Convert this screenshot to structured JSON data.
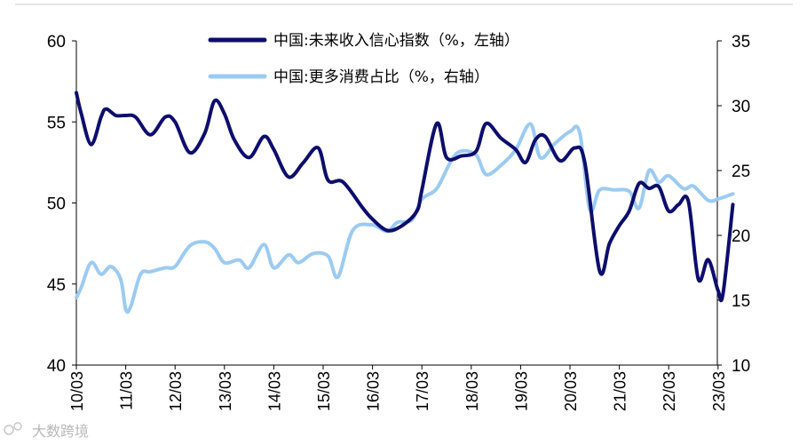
{
  "chart_data": {
    "type": "line",
    "title": "",
    "x_tick_labels": [
      "10/03",
      "11/03",
      "12/03",
      "13/03",
      "14/03",
      "15/03",
      "16/03",
      "17/03",
      "18/03",
      "19/03",
      "20/03",
      "21/03",
      "22/03",
      "23/03"
    ],
    "left_axis": {
      "ylim": [
        40,
        60
      ],
      "ticks": [
        "40",
        "45",
        "50",
        "55",
        "60"
      ]
    },
    "right_axis": {
      "ylim": [
        10,
        35
      ],
      "ticks": [
        "10",
        "15",
        "20",
        "25",
        "30",
        "35"
      ]
    },
    "series": [
      {
        "name": "中国:未来收入信心指数（%，左轴）",
        "axis": "left",
        "color": "#0d0d6e",
        "points": [
          [
            0,
            56.8
          ],
          [
            0.1,
            55.5
          ],
          [
            0.3,
            53.6
          ],
          [
            0.5,
            55.3
          ],
          [
            0.6,
            55.8
          ],
          [
            0.8,
            55.4
          ],
          [
            1.0,
            55.4
          ],
          [
            1.2,
            55.3
          ],
          [
            1.5,
            54.2
          ],
          [
            1.8,
            55.3
          ],
          [
            2.0,
            55.0
          ],
          [
            2.3,
            53.1
          ],
          [
            2.6,
            54.3
          ],
          [
            2.8,
            56.3
          ],
          [
            3.0,
            55.5
          ],
          [
            3.2,
            53.9
          ],
          [
            3.5,
            52.8
          ],
          [
            3.8,
            54.1
          ],
          [
            4.0,
            53.3
          ],
          [
            4.3,
            51.6
          ],
          [
            4.6,
            52.5
          ],
          [
            4.9,
            53.4
          ],
          [
            5.1,
            51.4
          ],
          [
            5.4,
            51.3
          ],
          [
            5.8,
            49.7
          ],
          [
            6.0,
            49.0
          ],
          [
            6.3,
            48.3
          ],
          [
            6.6,
            48.6
          ],
          [
            6.9,
            49.5
          ],
          [
            7.0,
            50.8
          ],
          [
            7.3,
            54.9
          ],
          [
            7.5,
            52.8
          ],
          [
            7.8,
            52.9
          ],
          [
            8.1,
            53.2
          ],
          [
            8.3,
            54.9
          ],
          [
            8.6,
            54.0
          ],
          [
            8.9,
            53.3
          ],
          [
            9.1,
            52.5
          ],
          [
            9.3,
            53.9
          ],
          [
            9.5,
            54.1
          ],
          [
            9.8,
            52.6
          ],
          [
            10.1,
            53.4
          ],
          [
            10.3,
            52.5
          ],
          [
            10.6,
            45.8
          ],
          [
            10.8,
            47.5
          ],
          [
            11.0,
            48.6
          ],
          [
            11.2,
            49.5
          ],
          [
            11.4,
            51.2
          ],
          [
            11.6,
            50.9
          ],
          [
            11.8,
            51.0
          ],
          [
            12.0,
            49.5
          ],
          [
            12.2,
            49.9
          ],
          [
            12.4,
            50.1
          ],
          [
            12.6,
            45.3
          ],
          [
            12.8,
            46.5
          ],
          [
            13.0,
            44.6
          ],
          [
            13.1,
            44.4
          ],
          [
            13.3,
            49.9
          ]
        ]
      },
      {
        "name": "中国:更多消费占比（%，右轴）",
        "axis": "right",
        "color": "#9bcbf2",
        "points": [
          [
            0,
            15.2
          ],
          [
            0.1,
            16.0
          ],
          [
            0.3,
            17.9
          ],
          [
            0.5,
            17.0
          ],
          [
            0.7,
            17.6
          ],
          [
            0.9,
            16.6
          ],
          [
            1.0,
            14.3
          ],
          [
            1.1,
            14.5
          ],
          [
            1.3,
            17.0
          ],
          [
            1.5,
            17.2
          ],
          [
            1.8,
            17.5
          ],
          [
            2.0,
            17.6
          ],
          [
            2.3,
            19.2
          ],
          [
            2.6,
            19.5
          ],
          [
            2.8,
            19.0
          ],
          [
            3.0,
            17.9
          ],
          [
            3.3,
            18.1
          ],
          [
            3.5,
            17.5
          ],
          [
            3.8,
            19.3
          ],
          [
            4.0,
            17.5
          ],
          [
            4.3,
            18.5
          ],
          [
            4.5,
            17.9
          ],
          [
            4.8,
            18.6
          ],
          [
            5.1,
            18.4
          ],
          [
            5.3,
            16.8
          ],
          [
            5.6,
            20.4
          ],
          [
            6.0,
            20.8
          ],
          [
            6.3,
            20.3
          ],
          [
            6.5,
            21.0
          ],
          [
            6.8,
            21.2
          ],
          [
            7.0,
            22.8
          ],
          [
            7.3,
            23.6
          ],
          [
            7.6,
            25.8
          ],
          [
            7.8,
            26.5
          ],
          [
            8.1,
            26.2
          ],
          [
            8.3,
            24.7
          ],
          [
            8.6,
            25.4
          ],
          [
            8.9,
            26.6
          ],
          [
            9.2,
            28.6
          ],
          [
            9.4,
            26.0
          ],
          [
            9.7,
            27.1
          ],
          [
            10.0,
            28.0
          ],
          [
            10.2,
            27.9
          ],
          [
            10.4,
            22.0
          ],
          [
            10.6,
            23.5
          ],
          [
            10.9,
            23.5
          ],
          [
            11.2,
            23.4
          ],
          [
            11.4,
            22.1
          ],
          [
            11.6,
            25.0
          ],
          [
            11.8,
            24.1
          ],
          [
            12.0,
            24.6
          ],
          [
            12.3,
            23.6
          ],
          [
            12.5,
            23.8
          ],
          [
            12.8,
            22.7
          ],
          [
            13.0,
            22.8
          ],
          [
            13.3,
            23.2
          ]
        ]
      }
    ],
    "legend": {
      "items": [
        "中国:未来收入信心指数（%，左轴）",
        "中国:更多消费占比（%，右轴）"
      ],
      "placement": "top-center"
    },
    "grid": false
  },
  "watermark": {
    "text": "大数跨境"
  }
}
